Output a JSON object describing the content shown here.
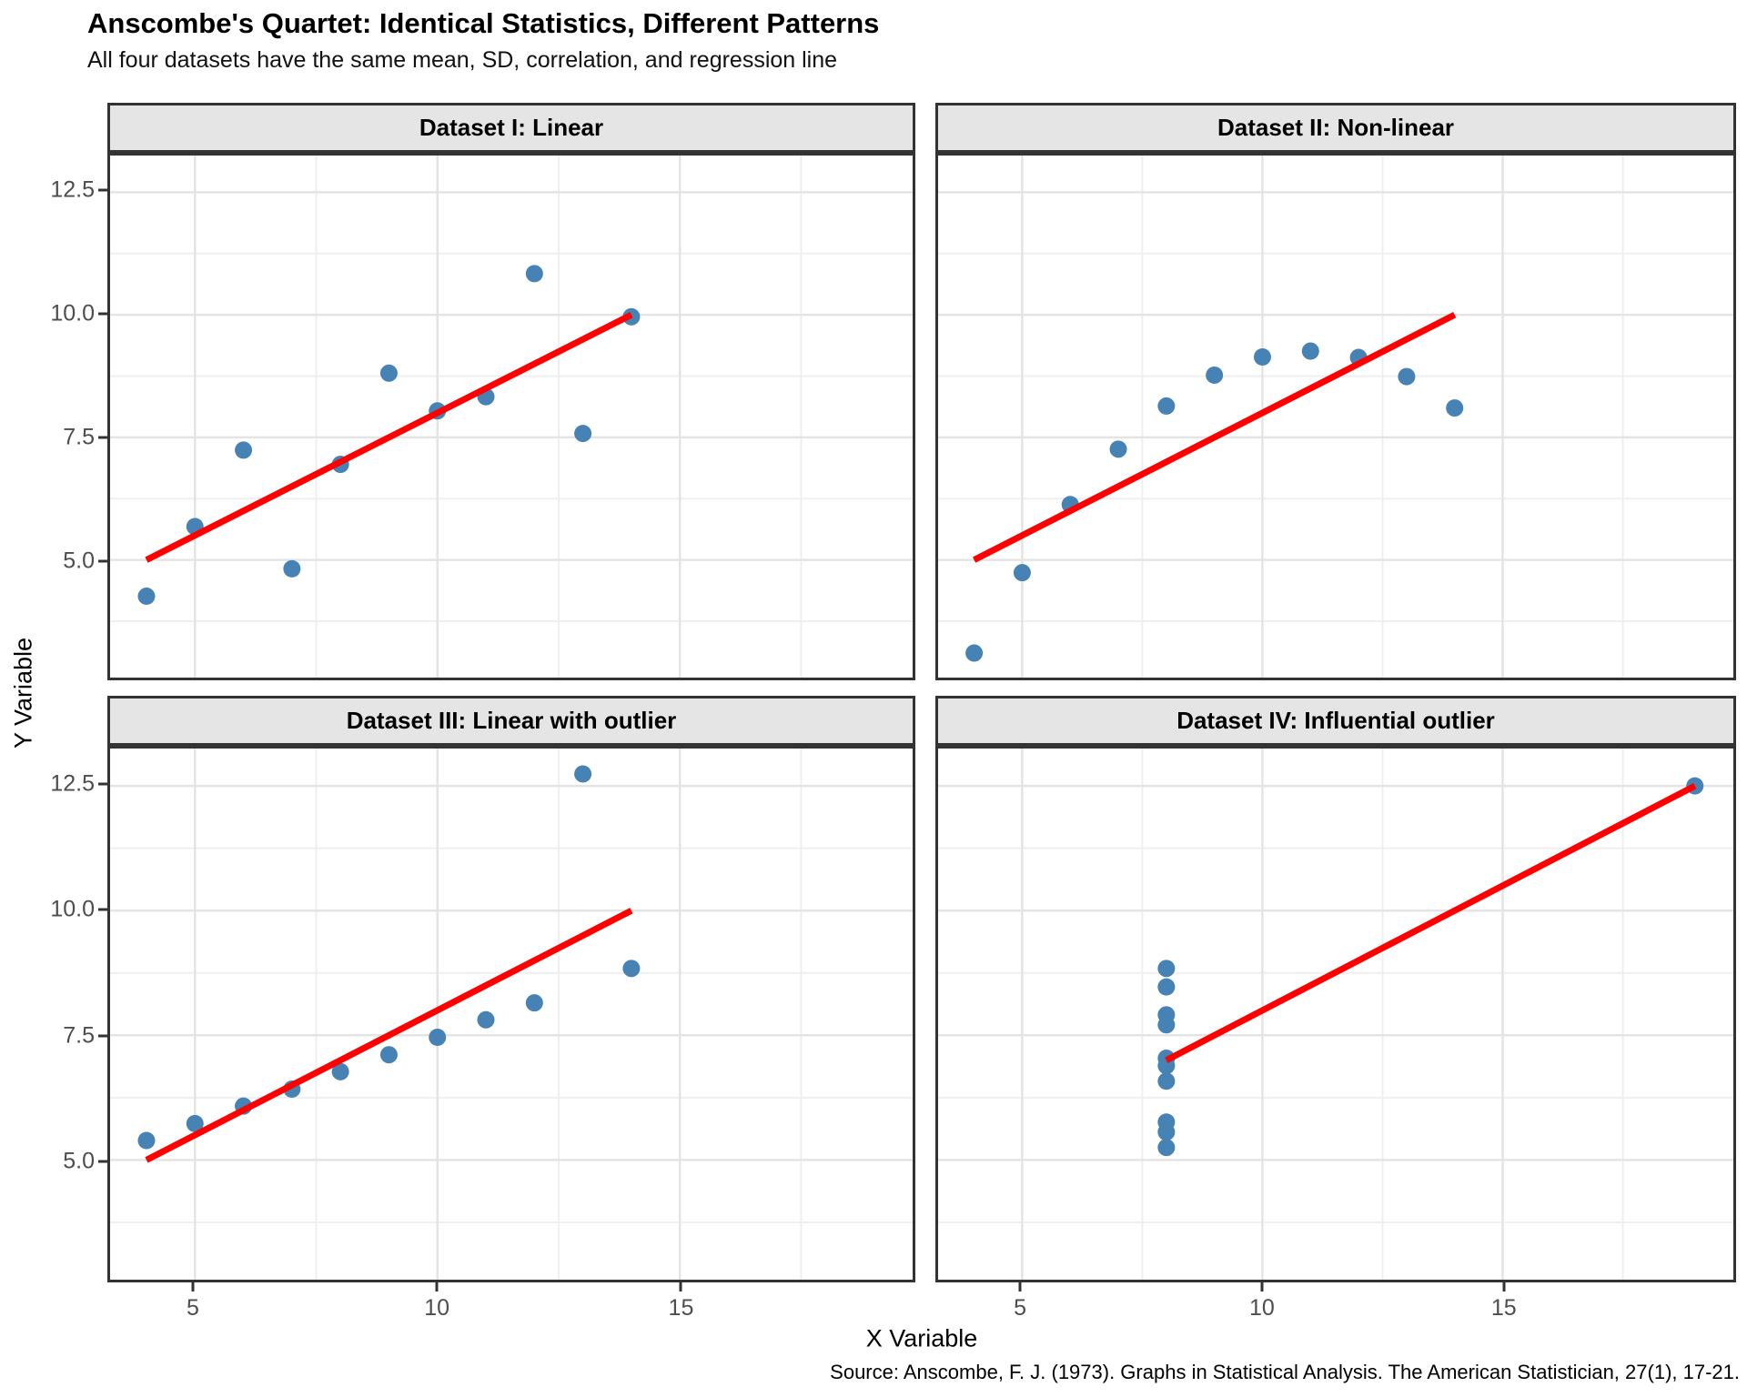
{
  "chart_data": {
    "type": "scatter",
    "title": "Anscombe's Quartet: Identical Statistics, Different Patterns",
    "subtitle": "All four datasets have the same mean, SD, correlation, and regression line",
    "caption": "Source: Anscombe, F. J. (1973). Graphs in Statistical Analysis. The American Statistician, 27(1), 17-21.",
    "xlabel": "X Variable",
    "ylabel": "Y Variable",
    "legend": "none",
    "grid": "on",
    "x_domain": [
      3.25,
      19.8
    ],
    "y_domain": [
      2.6,
      13.25
    ],
    "x_ticks": [
      {
        "value": 5,
        "label": "5"
      },
      {
        "value": 10,
        "label": "10"
      },
      {
        "value": 15,
        "label": "15"
      }
    ],
    "y_ticks": [
      {
        "value": 12.5,
        "label": "12.5"
      },
      {
        "value": 10.0,
        "label": "10.0"
      },
      {
        "value": 7.5,
        "label": "7.5"
      },
      {
        "value": 5.0,
        "label": "5.0"
      }
    ],
    "x_minor_ticks": [
      7.5,
      12.5,
      17.5
    ],
    "y_minor_ticks": [
      3.75,
      6.25,
      8.75,
      11.25
    ],
    "colors": {
      "point": "#4682B4",
      "regression_line": "#FF0000",
      "strip_background": "#E5E5E5",
      "panel_border": "#333333",
      "grid_major": "#E4E4E4",
      "grid_minor": "#EFEFEF",
      "tick_text": "#4D4D4D"
    },
    "facets": [
      {
        "label": "Dataset I: Linear",
        "points": [
          [
            10,
            8.04
          ],
          [
            8,
            6.95
          ],
          [
            13,
            7.58
          ],
          [
            9,
            8.81
          ],
          [
            11,
            8.33
          ],
          [
            14,
            9.96
          ],
          [
            6,
            7.24
          ],
          [
            4,
            4.26
          ],
          [
            12,
            10.84
          ],
          [
            7,
            4.82
          ],
          [
            5,
            5.68
          ]
        ],
        "regression": {
          "x1": 4,
          "y1": 5.0,
          "x2": 14,
          "y2": 10.0
        }
      },
      {
        "label": "Dataset II: Non-linear",
        "points": [
          [
            10,
            9.14
          ],
          [
            8,
            8.14
          ],
          [
            13,
            8.74
          ],
          [
            9,
            8.77
          ],
          [
            11,
            9.26
          ],
          [
            14,
            8.1
          ],
          [
            6,
            6.13
          ],
          [
            4,
            3.1
          ],
          [
            12,
            9.13
          ],
          [
            7,
            7.26
          ],
          [
            5,
            4.74
          ]
        ],
        "regression": {
          "x1": 4,
          "y1": 5.0,
          "x2": 14,
          "y2": 10.0
        }
      },
      {
        "label": "Dataset III: Linear with outlier",
        "points": [
          [
            10,
            7.46
          ],
          [
            8,
            6.77
          ],
          [
            13,
            12.74
          ],
          [
            9,
            7.11
          ],
          [
            11,
            7.81
          ],
          [
            14,
            8.84
          ],
          [
            6,
            6.08
          ],
          [
            4,
            5.39
          ],
          [
            12,
            8.15
          ],
          [
            7,
            6.42
          ],
          [
            5,
            5.73
          ]
        ],
        "regression": {
          "x1": 4,
          "y1": 5.0,
          "x2": 14,
          "y2": 10.0
        }
      },
      {
        "label": "Dataset IV: Influential outlier",
        "points": [
          [
            8,
            6.58
          ],
          [
            8,
            5.76
          ],
          [
            8,
            7.71
          ],
          [
            8,
            8.84
          ],
          [
            8,
            8.47
          ],
          [
            8,
            7.04
          ],
          [
            8,
            5.25
          ],
          [
            19,
            12.5
          ],
          [
            8,
            5.56
          ],
          [
            8,
            7.91
          ],
          [
            8,
            6.89
          ]
        ],
        "regression": {
          "x1": 8,
          "y1": 7.0,
          "x2": 19,
          "y2": 12.5
        }
      }
    ]
  }
}
